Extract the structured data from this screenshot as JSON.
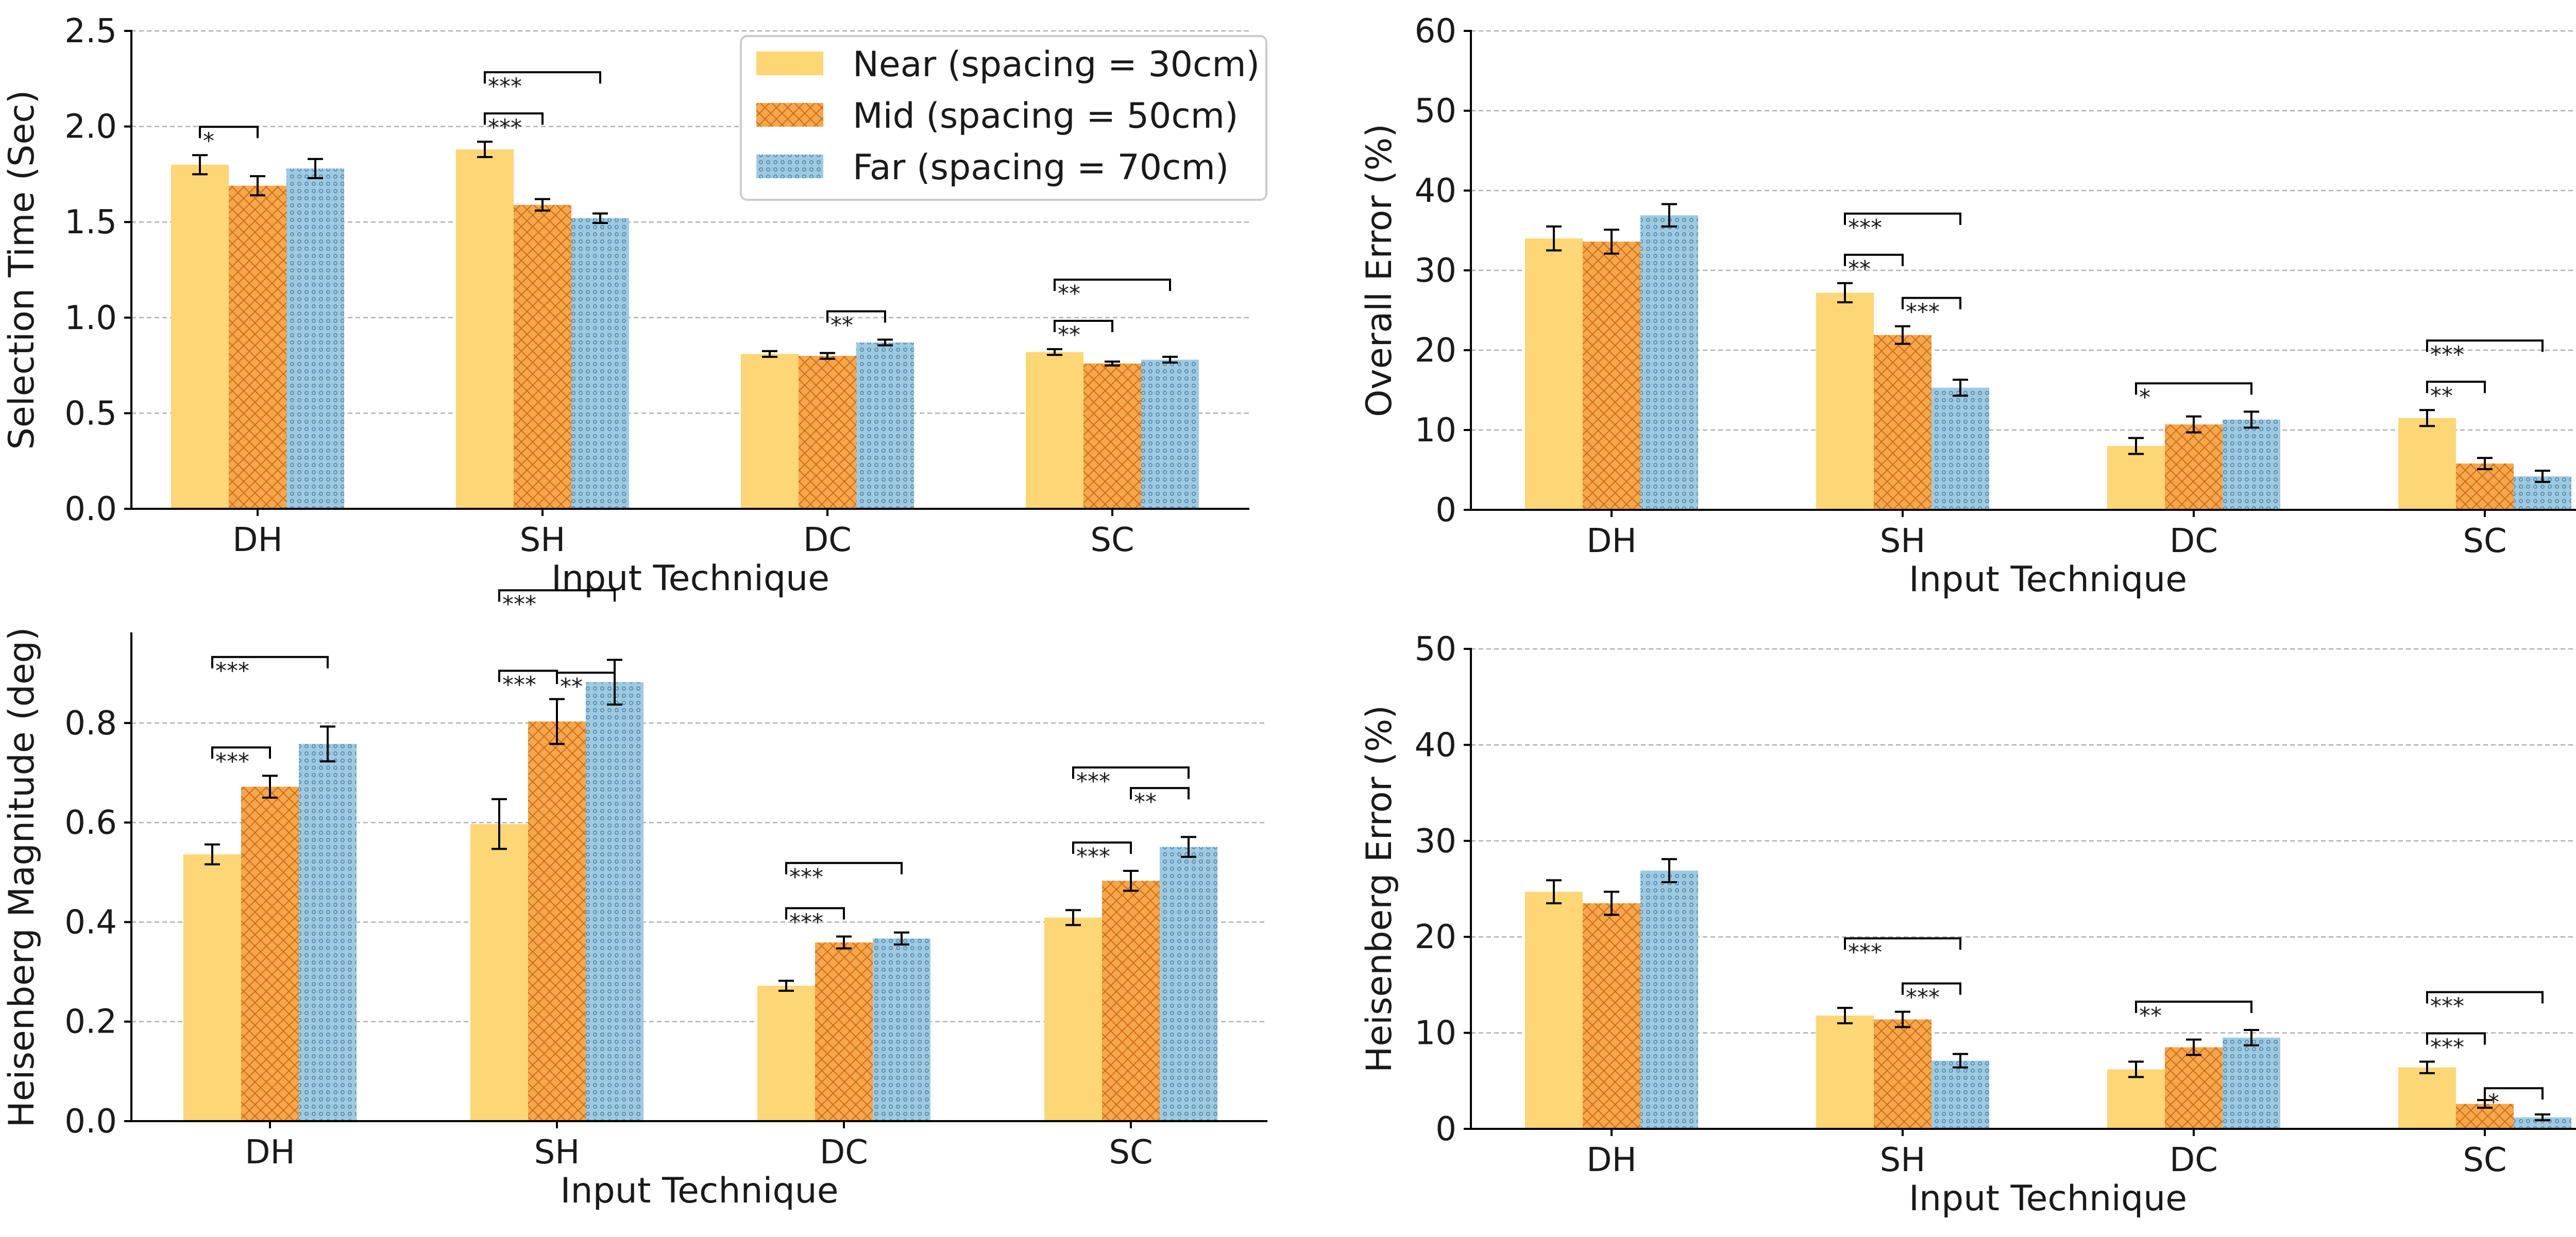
{
  "colors": {
    "near": "#FDD775",
    "mid": "#F5A849",
    "far": "#9ECAE1",
    "mid_hatch": "#D2691E",
    "far_hatch": "#4A7FA8",
    "axis": "#000000",
    "grid": "#B0B0B0"
  },
  "legend": {
    "entries": [
      "Near (spacing = 30cm)",
      "Mid (spacing = 50cm)",
      "Far (spacing = 70cm)"
    ]
  },
  "chart_data": [
    {
      "type": "bar",
      "panel": "top-left",
      "title": "",
      "xlabel": "Input Technique",
      "ylabel": "Selection Time (Sec)",
      "categories": [
        "DH",
        "SH",
        "DC",
        "SC"
      ],
      "ylim": [
        0,
        2.5
      ],
      "yticks": [
        0.0,
        0.5,
        1.0,
        1.5,
        2.0,
        2.5
      ],
      "ytick_labels": [
        "0.0",
        "0.5",
        "1.0",
        "1.5",
        "2.0",
        "2.5"
      ],
      "grid": true,
      "legend_position": "top-right",
      "series": [
        {
          "name": "Near (spacing = 30cm)",
          "values": [
            1.8,
            1.88,
            0.81,
            0.82
          ],
          "errors": [
            0.05,
            0.04,
            0.015,
            0.015
          ]
        },
        {
          "name": "Mid (spacing = 50cm)",
          "values": [
            1.69,
            1.59,
            0.8,
            0.76
          ],
          "errors": [
            0.05,
            0.03,
            0.015,
            0.01
          ]
        },
        {
          "name": "Far (spacing = 70cm)",
          "values": [
            1.78,
            1.52,
            0.87,
            0.78
          ],
          "errors": [
            0.05,
            0.025,
            0.015,
            0.015
          ]
        }
      ],
      "significance": [
        {
          "cat": 0,
          "a": 0,
          "b": 1,
          "level": 1,
          "label": "*"
        },
        {
          "cat": 1,
          "a": 0,
          "b": 1,
          "level": 1,
          "label": "***"
        },
        {
          "cat": 1,
          "a": 0,
          "b": 2,
          "level": 2,
          "label": "***"
        },
        {
          "cat": 2,
          "a": 1,
          "b": 2,
          "level": 1,
          "label": "**"
        },
        {
          "cat": 3,
          "a": 0,
          "b": 1,
          "level": 1,
          "label": "**"
        },
        {
          "cat": 3,
          "a": 0,
          "b": 2,
          "level": 2,
          "label": "**"
        }
      ]
    },
    {
      "type": "bar",
      "panel": "top-right",
      "title": "",
      "xlabel": "Input Technique",
      "ylabel": "Overall Error (%)",
      "categories": [
        "DH",
        "SH",
        "DC",
        "SC"
      ],
      "ylim": [
        0,
        60
      ],
      "yticks": [
        0,
        10,
        20,
        30,
        40,
        50,
        60
      ],
      "ytick_labels": [
        "0",
        "10",
        "20",
        "30",
        "40",
        "50",
        "60"
      ],
      "grid": true,
      "series": [
        {
          "name": "Near (spacing = 30cm)",
          "values": [
            34.0,
            27.2,
            8.0,
            11.5
          ],
          "errors": [
            1.5,
            1.2,
            1.0,
            1.0
          ]
        },
        {
          "name": "Mid (spacing = 50cm)",
          "values": [
            33.6,
            21.9,
            10.7,
            5.8
          ],
          "errors": [
            1.5,
            1.1,
            1.0,
            0.7
          ]
        },
        {
          "name": "Far (spacing = 70cm)",
          "values": [
            36.9,
            15.3,
            11.3,
            4.2
          ],
          "errors": [
            1.4,
            1.0,
            1.0,
            0.7
          ]
        }
      ],
      "significance": [
        {
          "cat": 1,
          "a": 0,
          "b": 1,
          "level": 1,
          "label": "**"
        },
        {
          "cat": 1,
          "a": 0,
          "b": 2,
          "level": 2,
          "label": "***"
        },
        {
          "cat": 1,
          "a": 1,
          "b": 2,
          "level": 1,
          "label": "***"
        },
        {
          "cat": 2,
          "a": 0,
          "b": 2,
          "level": 1,
          "label": "*"
        },
        {
          "cat": 3,
          "a": 0,
          "b": 1,
          "level": 1,
          "label": "**"
        },
        {
          "cat": 3,
          "a": 0,
          "b": 2,
          "level": 2,
          "label": "***"
        }
      ]
    },
    {
      "type": "bar",
      "panel": "bottom-left",
      "title": "",
      "xlabel": "Input Technique",
      "ylabel": "Heisenberg Magnitude (deg)",
      "categories": [
        "DH",
        "SH",
        "DC",
        "SC"
      ],
      "ylim": [
        0,
        0.98
      ],
      "yticks": [
        0.0,
        0.2,
        0.4,
        0.6,
        0.8
      ],
      "ytick_labels": [
        "0.0",
        "0.2",
        "0.4",
        "0.6",
        "0.8"
      ],
      "grid": true,
      "series": [
        {
          "name": "Near (spacing = 30cm)",
          "values": [
            0.536,
            0.597,
            0.272,
            0.409
          ],
          "errors": [
            0.02,
            0.05,
            0.01,
            0.015
          ]
        },
        {
          "name": "Mid (spacing = 50cm)",
          "values": [
            0.672,
            0.803,
            0.359,
            0.483
          ],
          "errors": [
            0.022,
            0.045,
            0.012,
            0.02
          ]
        },
        {
          "name": "Far (spacing = 70cm)",
          "values": [
            0.758,
            0.882,
            0.367,
            0.551
          ],
          "errors": [
            0.035,
            0.045,
            0.012,
            0.02
          ]
        }
      ],
      "significance": [
        {
          "cat": 0,
          "a": 0,
          "b": 1,
          "level": 1,
          "label": "***"
        },
        {
          "cat": 0,
          "a": 0,
          "b": 2,
          "level": 2,
          "label": "***"
        },
        {
          "cat": 1,
          "a": 0,
          "b": 1,
          "level": 1,
          "label": "***"
        },
        {
          "cat": 1,
          "a": 0,
          "b": 2,
          "level": 2,
          "label": "***"
        },
        {
          "cat": 1,
          "a": 1,
          "b": 2,
          "level": 0,
          "label": "**"
        },
        {
          "cat": 2,
          "a": 0,
          "b": 1,
          "level": 1,
          "label": "***"
        },
        {
          "cat": 2,
          "a": 0,
          "b": 2,
          "level": 2,
          "label": "***"
        },
        {
          "cat": 3,
          "a": 0,
          "b": 1,
          "level": 1,
          "label": "***"
        },
        {
          "cat": 3,
          "a": 0,
          "b": 2,
          "level": 2,
          "label": "***"
        },
        {
          "cat": 3,
          "a": 1,
          "b": 2,
          "level": 1.5,
          "label": "**"
        }
      ]
    },
    {
      "type": "bar",
      "panel": "bottom-right",
      "title": "",
      "xlabel": "Input Technique",
      "ylabel": "Heisenberg Error (%)",
      "categories": [
        "DH",
        "SH",
        "DC",
        "SC"
      ],
      "ylim": [
        0,
        50
      ],
      "yticks": [
        0,
        10,
        20,
        30,
        40,
        50
      ],
      "ytick_labels": [
        "0",
        "10",
        "20",
        "30",
        "40",
        "50"
      ],
      "grid": true,
      "series": [
        {
          "name": "Near (spacing = 30cm)",
          "values": [
            24.7,
            11.8,
            6.2,
            6.4
          ],
          "errors": [
            1.2,
            0.8,
            0.8,
            0.6
          ]
        },
        {
          "name": "Mid (spacing = 50cm)",
          "values": [
            23.5,
            11.4,
            8.5,
            2.6
          ],
          "errors": [
            1.2,
            0.8,
            0.8,
            0.4
          ]
        },
        {
          "name": "Far (spacing = 70cm)",
          "values": [
            26.9,
            7.1,
            9.5,
            1.2
          ],
          "errors": [
            1.2,
            0.7,
            0.8,
            0.3
          ]
        }
      ],
      "significance": [
        {
          "cat": 1,
          "a": 0,
          "b": 2,
          "level": 2,
          "label": "***"
        },
        {
          "cat": 1,
          "a": 1,
          "b": 2,
          "level": 1,
          "label": "***"
        },
        {
          "cat": 2,
          "a": 0,
          "b": 2,
          "level": 1,
          "label": "**"
        },
        {
          "cat": 3,
          "a": 0,
          "b": 1,
          "level": 1,
          "label": "***"
        },
        {
          "cat": 3,
          "a": 0,
          "b": 2,
          "level": 2,
          "label": "***"
        },
        {
          "cat": 3,
          "a": 1,
          "b": 2,
          "level": 0.6,
          "label": "*"
        }
      ]
    }
  ]
}
